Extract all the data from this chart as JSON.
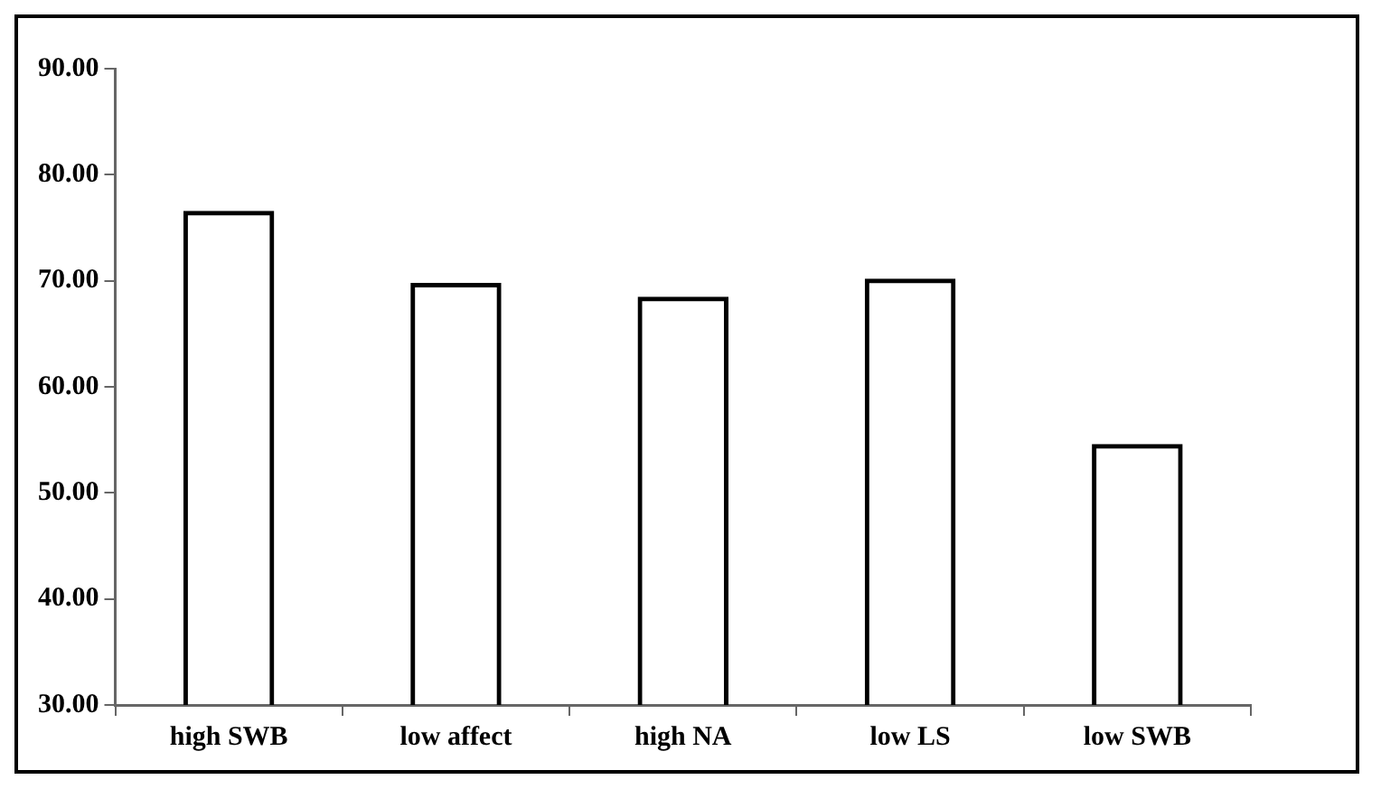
{
  "chart_data": {
    "type": "bar",
    "categories": [
      "high SWB",
      "low affect",
      "high NA",
      "low LS",
      "low SWB"
    ],
    "values": [
      76.6,
      69.8,
      68.5,
      70.2,
      54.6
    ],
    "color": "#000000",
    "ylim": [
      30,
      90
    ],
    "yticks": [
      {
        "value": 30,
        "label": "30.00"
      },
      {
        "value": 40,
        "label": "40.00"
      },
      {
        "value": 50,
        "label": "50.00"
      },
      {
        "value": 60,
        "label": "60.00"
      },
      {
        "value": 70,
        "label": "70.00"
      },
      {
        "value": 80,
        "label": "80.00"
      },
      {
        "value": 90,
        "label": "90.00"
      }
    ],
    "grid": false,
    "legend": false
  }
}
